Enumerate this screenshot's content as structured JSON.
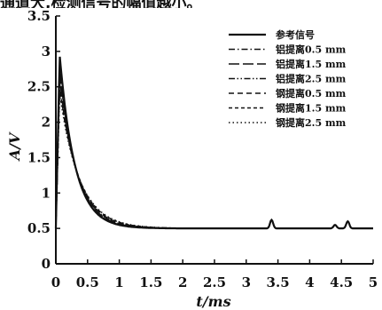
{
  "caption_fragment": "通道大,检测信号的幅值越小。",
  "chart_data": {
    "type": "line",
    "xlabel": "t/ms",
    "ylabel": "A/V",
    "xlim": [
      0,
      5
    ],
    "ylim": [
      0,
      3.5
    ],
    "x_ticks": [
      "0",
      "0.5",
      "1",
      "1.5",
      "2",
      "2.5",
      "3",
      "3.5",
      "4",
      "4.5",
      "5"
    ],
    "y_ticks": [
      "0",
      "0.5",
      "1",
      "1.5",
      "2",
      "2.5",
      "3",
      "3.5"
    ],
    "legend_position": "top-right",
    "series": [
      {
        "name": "参考信号",
        "style": "solid",
        "peak": 2.95
      },
      {
        "name": "铝提离0.5 mm",
        "style": "dash-dot",
        "peak": 2.8
      },
      {
        "name": "铝提离1.5 mm",
        "style": "long-dash",
        "peak": 2.72
      },
      {
        "name": "铝提离2.5 mm",
        "style": "dash-dot-dot",
        "peak": 2.62
      },
      {
        "name": "钢提离0.5 mm",
        "style": "dash",
        "peak": 2.55
      },
      {
        "name": "钢提离1.5 mm",
        "style": "short-dash",
        "peak": 2.48
      },
      {
        "name": "钢提离2.5 mm",
        "style": "dotted",
        "peak": 2.4
      }
    ],
    "baseline": 0.5,
    "peak_time": 0.06,
    "decay_constant_ms": 0.24,
    "blips": [
      {
        "x": 3.4,
        "y": 0.62
      },
      {
        "x": 4.4,
        "y": 0.55
      },
      {
        "x": 4.6,
        "y": 0.6
      }
    ]
  }
}
